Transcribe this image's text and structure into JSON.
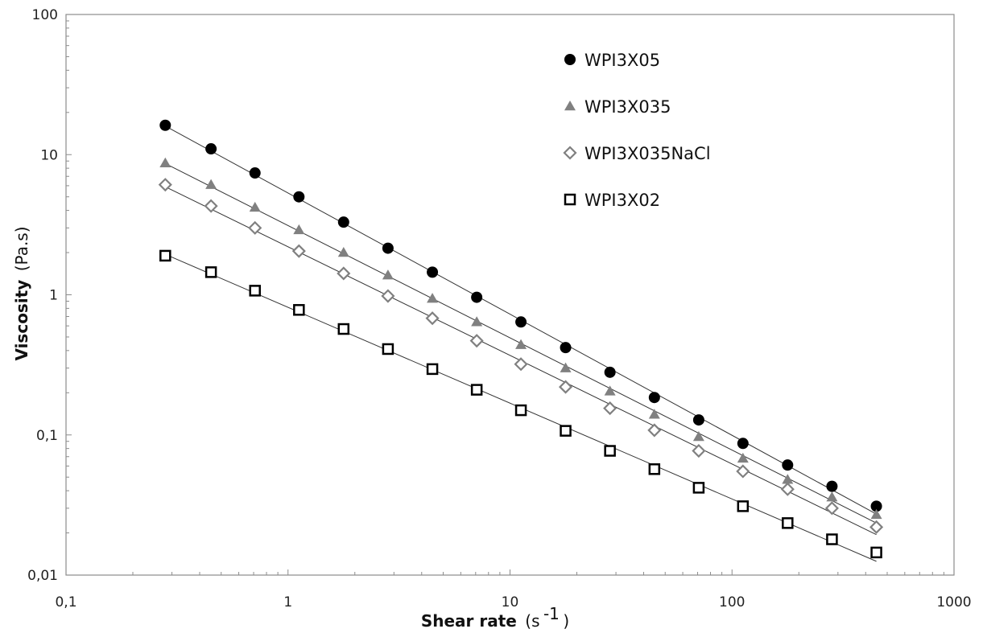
{
  "chart_data": {
    "type": "scatter",
    "title": "",
    "xlabel": "Shear rate",
    "xlabel_unit": "(s-1)",
    "xlabel_unit_base": "(s",
    "xlabel_unit_sup": "-1",
    "xlabel_unit_close": ")",
    "ylabel": "Viscosity",
    "ylabel_unit": "(Pa.s)",
    "xscale": "log",
    "yscale": "log",
    "xlim": [
      0.1,
      1000
    ],
    "ylim": [
      0.01,
      100
    ],
    "x_ticks": [
      "0,1",
      "1",
      "10",
      "100",
      "1000"
    ],
    "y_ticks": [
      "0,01",
      "0,1",
      "1",
      "10",
      "100"
    ],
    "grid": false,
    "legend_position": "top-right",
    "x": [
      0.28,
      0.45,
      0.71,
      1.12,
      1.78,
      2.82,
      4.47,
      7.08,
      11.2,
      17.8,
      28.2,
      44.7,
      70.8,
      112,
      178,
      282,
      447
    ],
    "series": [
      {
        "name": "WPI3X05",
        "marker": "filled-circle",
        "color": "#000000",
        "values": [
          16.2,
          11.0,
          7.4,
          5.0,
          3.3,
          2.15,
          1.45,
          0.96,
          0.64,
          0.42,
          0.28,
          0.185,
          0.128,
          0.087,
          0.061,
          0.043,
          0.031
        ]
      },
      {
        "name": "WPI3X035",
        "marker": "filled-triangle",
        "color": "#808080",
        "values": [
          8.7,
          6.1,
          4.2,
          2.9,
          2.0,
          1.38,
          0.94,
          0.64,
          0.44,
          0.3,
          0.205,
          0.14,
          0.097,
          0.068,
          0.048,
          0.036,
          0.027
        ]
      },
      {
        "name": "WPI3X035NaCl",
        "marker": "open-diamond",
        "color": "#808080",
        "values": [
          6.1,
          4.3,
          3.0,
          2.05,
          1.42,
          0.98,
          0.68,
          0.47,
          0.32,
          0.22,
          0.155,
          0.108,
          0.077,
          0.055,
          0.041,
          0.03,
          0.022
        ]
      },
      {
        "name": "WPI3X02",
        "marker": "open-square",
        "color": "#000000",
        "values": [
          1.9,
          1.45,
          1.07,
          0.78,
          0.57,
          0.41,
          0.295,
          0.21,
          0.15,
          0.107,
          0.077,
          0.057,
          0.042,
          0.031,
          0.0235,
          0.018,
          0.0145
        ]
      }
    ]
  }
}
